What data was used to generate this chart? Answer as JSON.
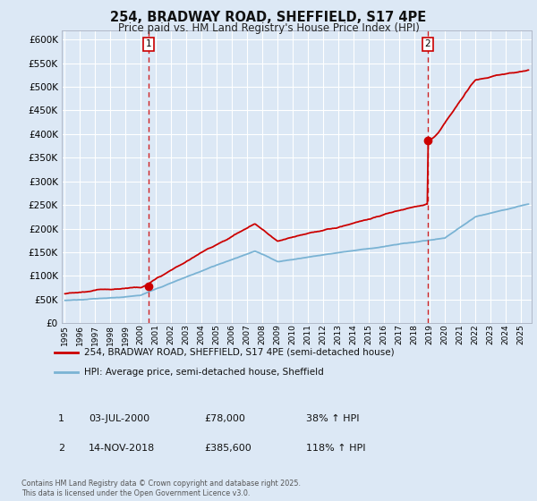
{
  "title": "254, BRADWAY ROAD, SHEFFIELD, S17 4PE",
  "subtitle": "Price paid vs. HM Land Registry's House Price Index (HPI)",
  "ylim": [
    0,
    620000
  ],
  "yticks": [
    0,
    50000,
    100000,
    150000,
    200000,
    250000,
    300000,
    350000,
    400000,
    450000,
    500000,
    550000,
    600000
  ],
  "xlim_start": 1994.8,
  "xlim_end": 2025.7,
  "background_color": "#dce8f5",
  "plot_background": "#dce8f5",
  "grid_color": "#ffffff",
  "red_line_color": "#cc0000",
  "blue_line_color": "#7ab3d4",
  "transaction1_x": 2000.5,
  "transaction1_y": 78000,
  "transaction2_x": 2018.87,
  "transaction2_y": 385600,
  "transaction1_date": "03-JUL-2000",
  "transaction1_price": "£78,000",
  "transaction1_hpi": "38% ↑ HPI",
  "transaction2_date": "14-NOV-2018",
  "transaction2_price": "£385,600",
  "transaction2_hpi": "118% ↑ HPI",
  "legend_line1": "254, BRADWAY ROAD, SHEFFIELD, S17 4PE (semi-detached house)",
  "legend_line2": "HPI: Average price, semi-detached house, Sheffield",
  "footer": "Contains HM Land Registry data © Crown copyright and database right 2025.\nThis data is licensed under the Open Government Licence v3.0."
}
